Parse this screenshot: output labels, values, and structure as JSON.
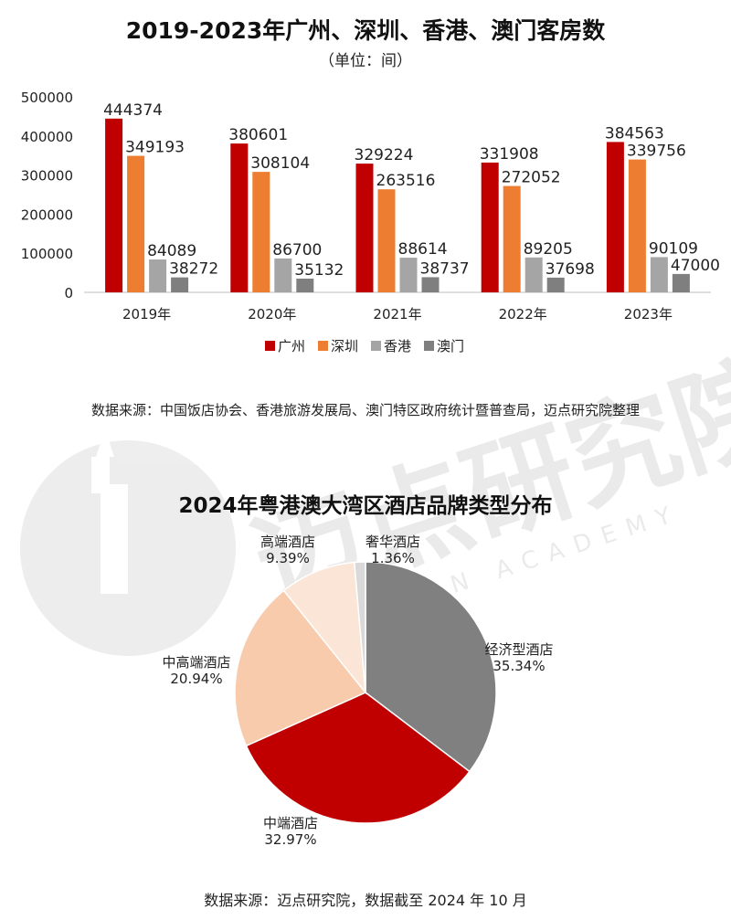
{
  "watermark": {
    "text": "迈点研究院",
    "subtext": "MEADIN ACADEMY"
  },
  "bar_chart": {
    "title": "2019-2023年广州、深圳、香港、澳门客房数",
    "subtitle": "（单位：间）",
    "source": "数据来源：中国饭店协会、香港旅游发展局、澳门特区政府统计暨普查局，迈点研究院整理"
  },
  "pie_chart": {
    "title": "2024年粤港澳大湾区酒店品牌类型分布",
    "source": "数据来源：迈点研究院，数据截至 2024 年 10 月"
  },
  "chart_data": [
    {
      "type": "bar",
      "title": "2019-2023年广州、深圳、香港、澳门客房数",
      "subtitle": "（单位：间）",
      "categories": [
        "2019年",
        "2020年",
        "2021年",
        "2022年",
        "2023年"
      ],
      "ylim": [
        0,
        500000
      ],
      "yticks": [
        0,
        100000,
        200000,
        300000,
        400000,
        500000
      ],
      "grid": false,
      "legend": "bottom",
      "series": [
        {
          "name": "广州",
          "color": "#c00000",
          "values": [
            444374,
            380601,
            329224,
            331908,
            384563
          ]
        },
        {
          "name": "深圳",
          "color": "#ed7d31",
          "values": [
            349193,
            308104,
            263516,
            272052,
            339756
          ]
        },
        {
          "name": "香港",
          "color": "#a5a5a5",
          "values": [
            84089,
            86700,
            88614,
            89205,
            90109
          ]
        },
        {
          "name": "澳门",
          "color": "#7f7f7f",
          "values": [
            38272,
            35132,
            38737,
            37698,
            47000
          ]
        }
      ]
    },
    {
      "type": "pie",
      "title": "2024年粤港澳大湾区酒店品牌类型分布",
      "slices": [
        {
          "label": "经济型酒店",
          "value": 35.34,
          "display": "35.34%",
          "color": "#808080"
        },
        {
          "label": "中端酒店",
          "value": 32.97,
          "display": "32.97%",
          "color": "#c00000"
        },
        {
          "label": "中高端酒店",
          "value": 20.94,
          "display": "20.94%",
          "color": "#f8cbad"
        },
        {
          "label": "高端酒店",
          "value": 9.39,
          "display": "9.39%",
          "color": "#fbe5d6"
        },
        {
          "label": "奢华酒店",
          "value": 1.36,
          "display": "1.36%",
          "color": "#d9d9d9"
        }
      ]
    }
  ]
}
